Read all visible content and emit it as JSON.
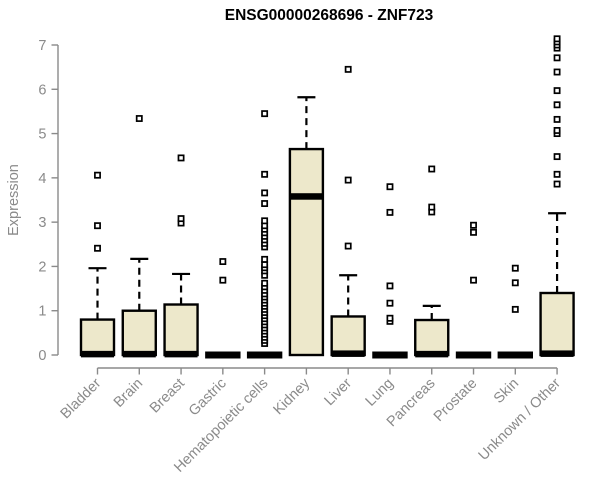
{
  "colors": {
    "box_fill": "#EDE8CB",
    "box_border": "#000000",
    "median": "#000000",
    "whisker": "#000000",
    "axis": "#8A8A8A",
    "label_gray": "#8A8A8A",
    "title": "#000000",
    "background": "#FFFFFF",
    "outlier_fill": "#FFFFFF"
  },
  "chart_data": {
    "type": "boxplot",
    "title": "ENSG00000268696 - ZNF723",
    "xlabel": "",
    "ylabel": "Expression",
    "ylim": [
      0,
      7
    ],
    "yticks": [
      0,
      1,
      2,
      3,
      4,
      5,
      6,
      7
    ],
    "grid": "off",
    "legend": "none",
    "categories": [
      "Bladder",
      "Brain",
      "Breast",
      "Gastric",
      "Hematopoietic cells",
      "Kidney",
      "Liver",
      "Lung",
      "Pancreas",
      "Prostate",
      "Skin",
      "Unknown / Other"
    ],
    "boxes": [
      {
        "category": "Bladder",
        "q1": 0,
        "median": 0.02,
        "q3": 0.8,
        "whisker_low": 0,
        "whisker_high": 1.96,
        "outliers": [
          2.41,
          2.92,
          4.06
        ]
      },
      {
        "category": "Brain",
        "q1": 0,
        "median": 0.02,
        "q3": 1.0,
        "whisker_low": 0,
        "whisker_high": 2.17,
        "outliers": [
          5.34
        ]
      },
      {
        "category": "Breast",
        "q1": 0,
        "median": 0.02,
        "q3": 1.14,
        "whisker_low": 0,
        "whisker_high": 1.83,
        "outliers": [
          2.98,
          3.08,
          4.45
        ]
      },
      {
        "category": "Gastric",
        "q1": 0,
        "median": 0,
        "q3": 0,
        "whisker_low": 0,
        "whisker_high": 0,
        "outliers": [
          1.69,
          2.11
        ]
      },
      {
        "category": "Hematopoietic cells",
        "q1": 0,
        "median": 0,
        "q3": 0,
        "whisker_low": 0,
        "whisker_high": 0,
        "outliers": [
          0.26,
          0.33,
          0.4,
          0.47,
          0.54,
          0.61,
          0.68,
          0.75,
          0.82,
          0.89,
          0.96,
          1.03,
          1.1,
          1.17,
          1.24,
          1.31,
          1.38,
          1.46,
          1.54,
          1.62,
          1.8,
          1.9,
          1.97,
          2.04,
          2.16,
          2.44,
          2.52,
          2.6,
          2.68,
          2.76,
          2.84,
          2.92,
          3.03,
          3.42,
          3.66,
          4.08,
          5.45
        ]
      },
      {
        "category": "Kidney",
        "q1": 0,
        "median": 3.58,
        "q3": 4.65,
        "whisker_low": 0,
        "whisker_high": 5.82,
        "outliers": []
      },
      {
        "category": "Liver",
        "q1": 0,
        "median": 0.03,
        "q3": 0.87,
        "whisker_low": 0,
        "whisker_high": 1.8,
        "outliers": [
          2.46,
          3.95,
          6.45
        ]
      },
      {
        "category": "Lung",
        "q1": 0,
        "median": 0,
        "q3": 0,
        "whisker_low": 0,
        "whisker_high": 0,
        "outliers": [
          0.76,
          0.83,
          1.17,
          1.56,
          3.22,
          3.8
        ]
      },
      {
        "category": "Pancreas",
        "q1": 0,
        "median": 0.02,
        "q3": 0.79,
        "whisker_low": 0,
        "whisker_high": 1.11,
        "outliers": [
          3.23,
          3.34,
          4.2
        ]
      },
      {
        "category": "Prostate",
        "q1": 0,
        "median": 0,
        "q3": 0,
        "whisker_low": 0,
        "whisker_high": 0,
        "outliers": [
          1.69,
          2.77,
          2.93
        ]
      },
      {
        "category": "Skin",
        "q1": 0,
        "median": 0,
        "q3": 0,
        "whisker_low": 0,
        "whisker_high": 0,
        "outliers": [
          1.03,
          1.63,
          1.96
        ]
      },
      {
        "category": "Unknown / Other",
        "q1": 0,
        "median": 0.03,
        "q3": 1.4,
        "whisker_low": 0,
        "whisker_high": 3.2,
        "outliers": [
          3.86,
          4.08,
          4.48,
          5.0,
          5.07,
          5.32,
          5.65,
          5.97,
          6.39,
          6.71,
          6.93,
          7.0,
          7.07,
          7.14
        ]
      }
    ]
  }
}
